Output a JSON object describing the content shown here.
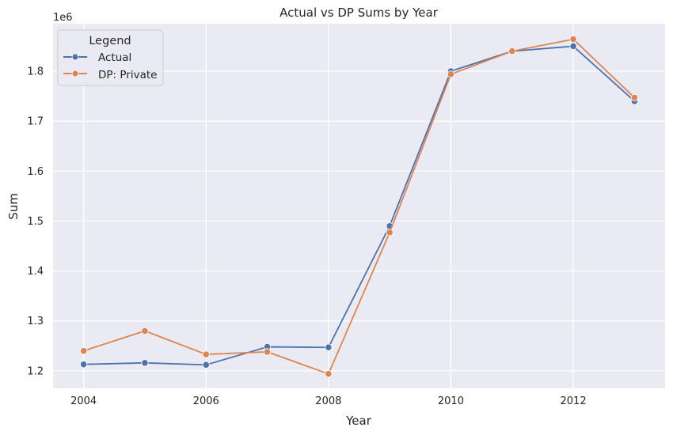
{
  "chart_data": {
    "type": "line",
    "title": "Actual vs DP Sums by Year",
    "xlabel": "Year",
    "ylabel": "Sum",
    "y_offset_text": "1e6",
    "xlim": [
      2003.5,
      2013.5
    ],
    "ylim": [
      1.165,
      1.895
    ],
    "x_ticks": [
      2004,
      2006,
      2008,
      2010,
      2012
    ],
    "x_tick_labels": [
      "2004",
      "2006",
      "2008",
      "2010",
      "2012"
    ],
    "y_ticks": [
      1.2,
      1.3,
      1.4,
      1.5,
      1.6,
      1.7,
      1.8
    ],
    "y_tick_labels": [
      "1.2",
      "1.3",
      "1.4",
      "1.5",
      "1.6",
      "1.7",
      "1.8"
    ],
    "grid": true,
    "legend": {
      "title": "Legend",
      "placement": "top-left"
    },
    "x": [
      2004,
      2005,
      2006,
      2007,
      2008,
      2009,
      2010,
      2011,
      2012,
      2013
    ],
    "series": [
      {
        "name": "Actual",
        "color": "#4c72b0",
        "values": [
          1.213,
          1.216,
          1.212,
          1.248,
          1.247,
          1.49,
          1.8,
          1.84,
          1.85,
          1.74
        ]
      },
      {
        "name": "DP: Private",
        "color": "#dd8452",
        "values": [
          1.24,
          1.28,
          1.233,
          1.238,
          1.194,
          1.477,
          1.794,
          1.84,
          1.864,
          1.747
        ]
      }
    ]
  }
}
